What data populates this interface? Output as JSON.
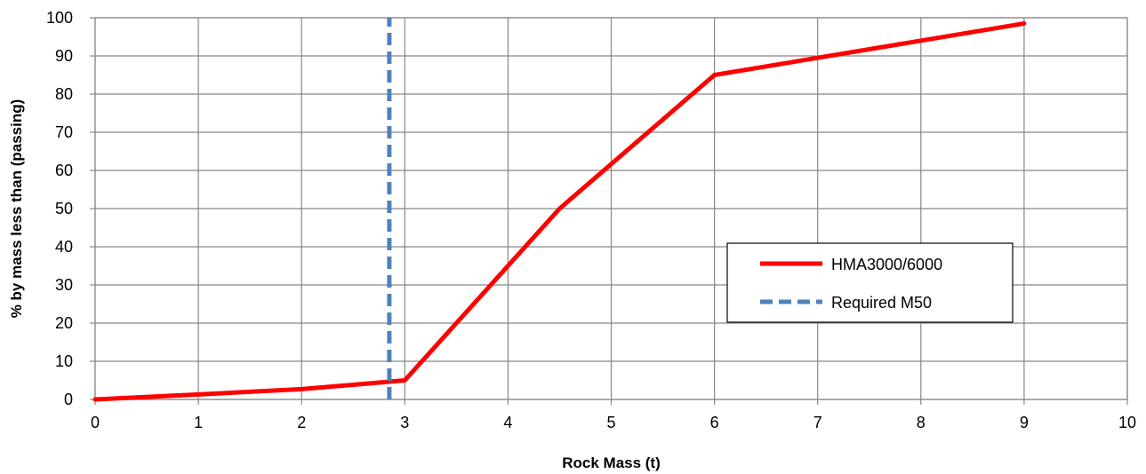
{
  "chart_data": {
    "type": "line",
    "xlabel": "Rock Mass (t)",
    "ylabel": "% by mass less than (passing)",
    "xlim": [
      0,
      10
    ],
    "ylim": [
      0,
      100
    ],
    "x_ticks": [
      "0",
      "1",
      "2",
      "3",
      "4",
      "5",
      "6",
      "7",
      "8",
      "9",
      "10"
    ],
    "y_ticks": [
      "0",
      "10",
      "20",
      "30",
      "40",
      "50",
      "60",
      "70",
      "80",
      "90",
      "100"
    ],
    "grid": true,
    "legend_position": "right",
    "series": [
      {
        "name": "HMA3000/6000",
        "color": "#ff0000",
        "style": "solid",
        "x": [
          0,
          1,
          2,
          3,
          4.5,
          6,
          9
        ],
        "y": [
          0,
          1.3,
          2.7,
          5,
          50,
          85,
          98.5
        ]
      },
      {
        "name": "Required M50",
        "color": "#4f81bd",
        "style": "dashed",
        "x": [
          2.85,
          2.85
        ],
        "y": [
          0,
          100
        ]
      }
    ]
  }
}
